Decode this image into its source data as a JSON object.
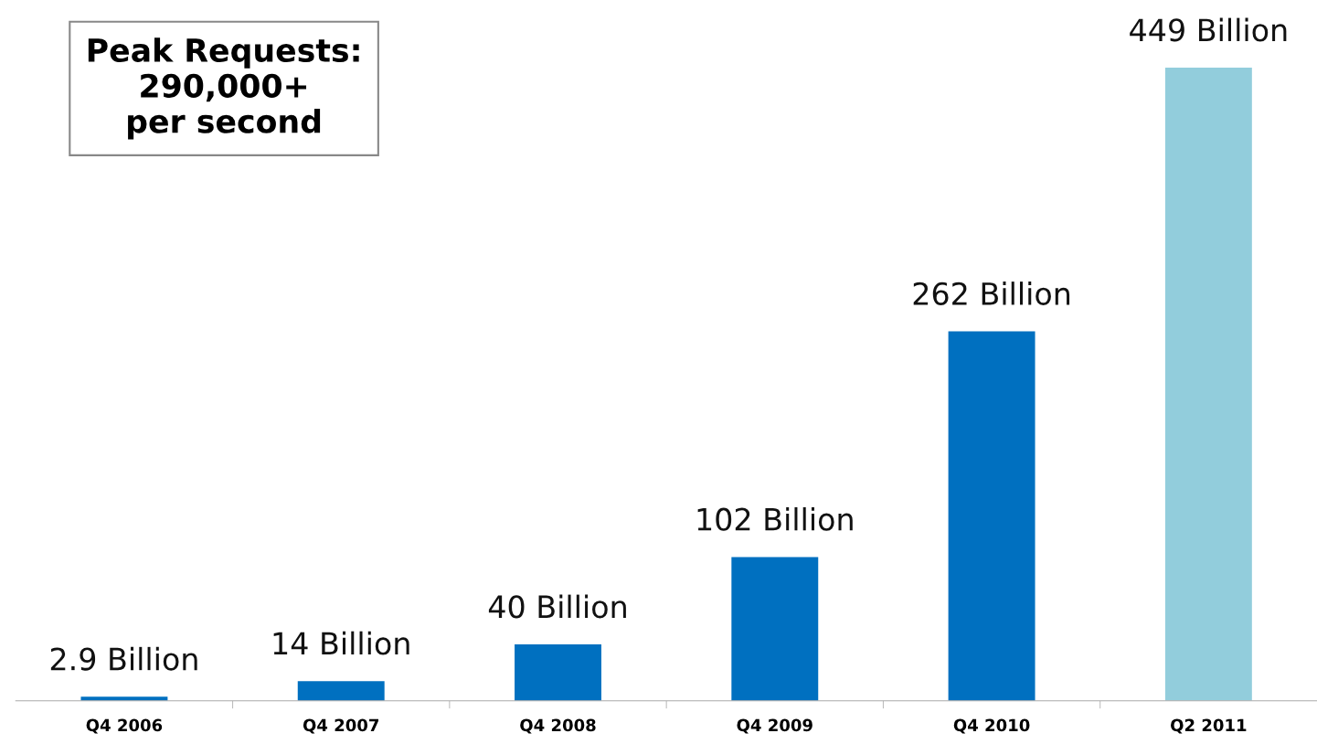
{
  "chart_data": {
    "type": "bar",
    "categories": [
      "Q4 2006",
      "Q4 2007",
      "Q4 2008",
      "Q4 2009",
      "Q4 2010",
      "Q2 2011"
    ],
    "values": [
      2.9,
      14,
      40,
      102,
      262,
      449
    ],
    "colors": [
      "#0070c0",
      "#0070c0",
      "#0070c0",
      "#0070c0",
      "#0070c0",
      "#92cddc"
    ],
    "value_labels": [
      "2.9 Billion",
      "14 Billion",
      "40 Billion",
      "102 Billion",
      "262 Billion",
      "449 Billion"
    ],
    "annotations": [
      "Peak Requests:\n290,000+\nper second"
    ],
    "grid": false,
    "legend": false
  }
}
